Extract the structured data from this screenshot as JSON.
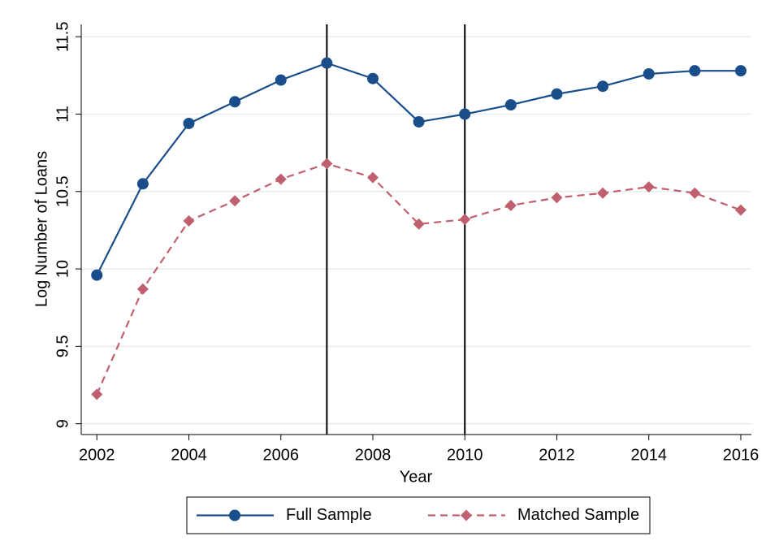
{
  "chart_data": {
    "type": "line",
    "x_label": "Year",
    "y_label": "Log Number of Loans",
    "x": [
      2002,
      2003,
      2004,
      2005,
      2006,
      2007,
      2008,
      2009,
      2010,
      2011,
      2012,
      2013,
      2014,
      2015,
      2016
    ],
    "series": [
      {
        "name": "Full Sample",
        "color": "#1a4e8a",
        "marker": "circle",
        "dash": false,
        "values": [
          9.96,
          10.55,
          10.94,
          11.08,
          11.22,
          11.33,
          11.23,
          10.95,
          11.0,
          11.06,
          11.13,
          11.18,
          11.26,
          11.28,
          11.28
        ]
      },
      {
        "name": "Matched Sample",
        "color": "#c0606e",
        "marker": "diamond",
        "dash": true,
        "values": [
          9.19,
          9.87,
          10.31,
          10.44,
          10.58,
          10.68,
          10.59,
          10.29,
          10.32,
          10.41,
          10.46,
          10.49,
          10.53,
          10.49,
          10.38
        ]
      }
    ],
    "xlim": [
      2001.66,
      2016.23
    ],
    "xticks": [
      2002,
      2004,
      2006,
      2008,
      2010,
      2012,
      2014,
      2016
    ],
    "ylim": [
      8.93,
      11.58
    ],
    "yticks": [
      9,
      9.5,
      10,
      10.5,
      11,
      11.5
    ],
    "vlines": [
      2007,
      2010
    ],
    "grid": true,
    "legend": "bottom"
  }
}
